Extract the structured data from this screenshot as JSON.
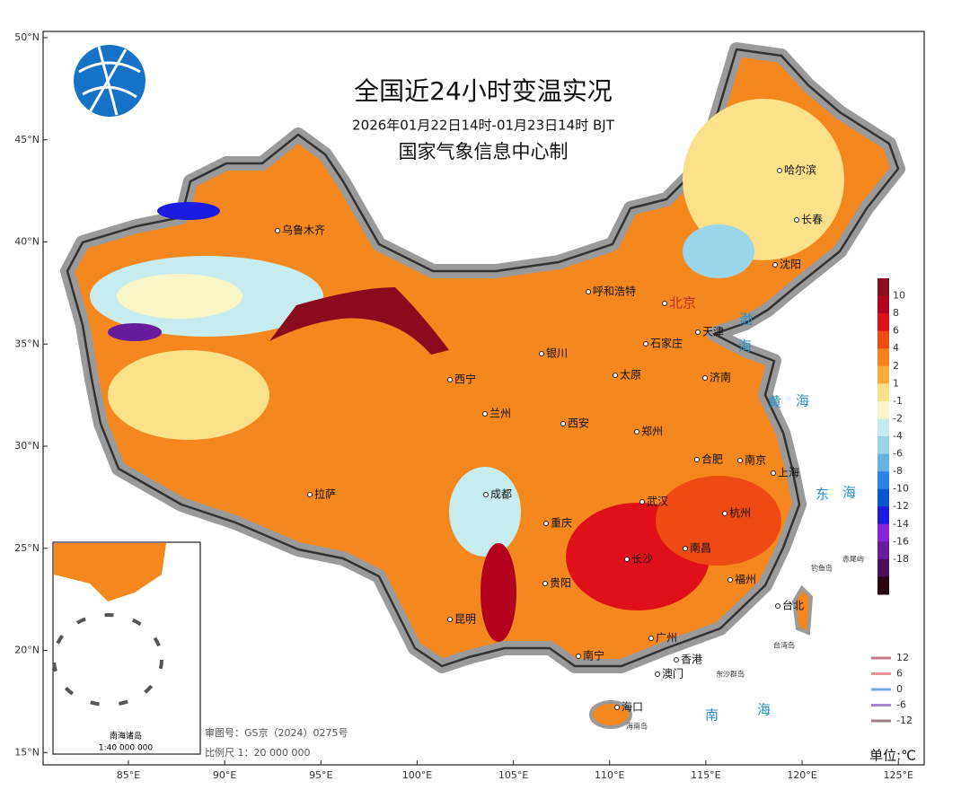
{
  "header": {
    "title": "全国近24小时变温实况",
    "subtitle": "2026年01月22日14时-01月23日14时 BJT",
    "producer": "国家气象信息中心制"
  },
  "axes": {
    "lat_ticks": [
      {
        "value": 50,
        "label": "50°N"
      },
      {
        "value": 45,
        "label": "45°N"
      },
      {
        "value": 40,
        "label": "40°N"
      },
      {
        "value": 35,
        "label": "35°N"
      },
      {
        "value": 30,
        "label": "30°N"
      },
      {
        "value": 25,
        "label": "25°N"
      },
      {
        "value": 20,
        "label": "20°N"
      },
      {
        "value": 15,
        "label": "15°N"
      }
    ],
    "lon_ticks": [
      {
        "value": 85,
        "label": "85°E"
      },
      {
        "value": 90,
        "label": "90°E"
      },
      {
        "value": 95,
        "label": "95°E"
      },
      {
        "value": 100,
        "label": "100°E"
      },
      {
        "value": 105,
        "label": "105°E"
      },
      {
        "value": 110,
        "label": "110°E"
      },
      {
        "value": 115,
        "label": "115°E"
      },
      {
        "value": 120,
        "label": "120°E"
      },
      {
        "value": 125,
        "label": "125°E"
      }
    ]
  },
  "legend": {
    "levels": [
      10,
      8,
      6,
      4,
      2,
      1,
      -1,
      -2,
      -4,
      -6,
      -8,
      -10,
      -12,
      -14,
      -16,
      -18
    ],
    "colors": [
      "#8a0a1e",
      "#b3001e",
      "#e0101a",
      "#f04a14",
      "#f5821e",
      "#f8ac3c",
      "#fde08a",
      "#fbf6c8",
      "#c6ecef",
      "#9ad6ea",
      "#68b2e2",
      "#2e82e6",
      "#0a54d2",
      "#1c1ce0",
      "#8a24d6",
      "#661c9c",
      "#4a0e5a",
      "#2c0610"
    ],
    "unit": "单位:℃"
  },
  "contour_legend": {
    "levels": [
      12,
      6,
      0,
      -6,
      -12
    ],
    "colors": [
      "#c87a8a",
      "#e8949a",
      "#78a8e6",
      "#a486cc",
      "#9a8080"
    ]
  },
  "cities": [
    "乌鲁木齐",
    "呼和浩特",
    "北京",
    "天津",
    "石家庄",
    "银川",
    "太原",
    "济南",
    "西宁",
    "兰州",
    "西安",
    "郑州",
    "合肥",
    "南京",
    "上海",
    "成都",
    "武汉",
    "杭州",
    "拉萨",
    "重庆",
    "长沙",
    "南昌",
    "贵阳",
    "福州",
    "昆明",
    "台北",
    "南宁",
    "广州",
    "香港",
    "澳门",
    "海口",
    "哈尔滨",
    "长春",
    "沈阳"
  ],
  "seas": [
    "渤",
    "海",
    "黄",
    "海",
    "东",
    "海",
    "南",
    "海"
  ],
  "islands": [
    "钓鱼岛",
    "赤尾屿",
    "台湾岛",
    "东沙群岛",
    "海南岛"
  ],
  "footer": {
    "review": "审图号：GS京（2024）0275号",
    "scale": "比例尺 1：20 000 000"
  },
  "inset": {
    "title": "南海诸岛",
    "scale": "1:40 000 000"
  }
}
